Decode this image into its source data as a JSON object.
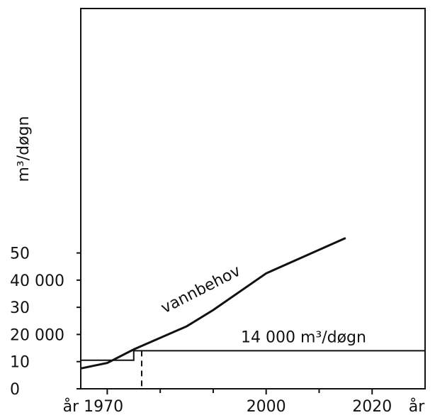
{
  "chart_data": {
    "type": "line",
    "ylabel": "m³/døgn",
    "xlabels": [
      "år",
      "år"
    ],
    "xlim": [
      1965,
      2030
    ],
    "xticks": [
      {
        "value": 1970,
        "label": "år 1970"
      },
      2000,
      2020
    ],
    "xminor": [
      1980,
      1990,
      2010
    ],
    "ylim": [
      0,
      140000
    ],
    "yticks": [
      0,
      {
        "value": 10000,
        "label": "10"
      },
      {
        "value": 20000,
        "label": "20 000"
      },
      {
        "value": 30000,
        "label": "30"
      },
      {
        "value": 40000,
        "label": "40 000"
      },
      {
        "value": 50000,
        "label": "50"
      }
    ],
    "series": [
      {
        "name": "vannbehov",
        "color": "#111111",
        "x": [
          1965,
          1970,
          1975,
          1985,
          1990,
          2000,
          2015
        ],
        "values": [
          7500,
          9500,
          14500,
          23000,
          29000,
          42500,
          55500
        ]
      },
      {
        "name": "14 000 m³/døgn",
        "color": "#111111",
        "x": [
          1965,
          1975,
          1975,
          2030
        ],
        "values": [
          10500,
          10500,
          14000,
          14000
        ]
      }
    ],
    "dashed_x": 1976.5
  }
}
